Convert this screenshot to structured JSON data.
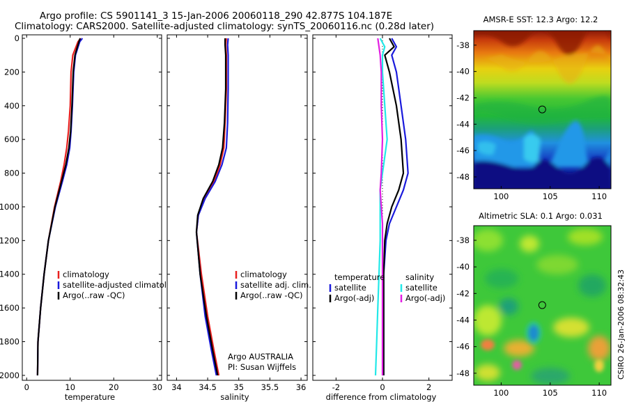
{
  "header": {
    "line1": "Argo profile: CS 5901141_3 15-Jan-2006 20060118_290 42.877S 104.187E",
    "line2": "Climatology: CARS2000. Satellite-adjusted climatology: synTS_20060116.nc (0.28d later)"
  },
  "credit": "CSIRO 26-Jan-2006 08:32:43",
  "colors": {
    "climatology": "#e8201f",
    "satellite": "#1a1adc",
    "argo": "#000000",
    "sat_salinity": "#22e8e8",
    "argo_salinity": "#e21ee2",
    "sat_temperature": "#1a1adc"
  },
  "chart_data": [
    {
      "id": "temperature",
      "type": "line",
      "xlabel": "temperature",
      "xlim": [
        -1,
        31
      ],
      "ylim": [
        0,
        2050
      ],
      "y_reversed": true,
      "xticks": [
        "0",
        "10",
        "20",
        "30"
      ],
      "xtick_values": [
        0,
        10,
        20,
        30
      ],
      "yticks": [
        "0",
        "200",
        "400",
        "600",
        "800",
        "1000",
        "1200",
        "1400",
        "1600",
        "1800",
        "2000"
      ],
      "ytick_values": [
        0,
        200,
        400,
        600,
        800,
        1000,
        1200,
        1400,
        1600,
        1800,
        2000
      ],
      "series": [
        {
          "name": "climatology",
          "color": "#e8201f",
          "x": [
            12.4,
            11.8,
            10.6,
            10.2,
            10.0,
            9.6,
            9.2,
            8.6,
            7.8,
            6.4,
            5.0,
            4.0,
            3.2,
            2.6,
            2.5
          ],
          "y": [
            0,
            20,
            100,
            200,
            400,
            550,
            650,
            750,
            850,
            1000,
            1200,
            1400,
            1600,
            1800,
            2000
          ]
        },
        {
          "name": "satellite-adjusted climatology",
          "color": "#1a1adc",
          "x": [
            12.8,
            12.2,
            11.2,
            10.8,
            10.5,
            10.2,
            9.9,
            9.2,
            8.2,
            6.6,
            5.0,
            4.0,
            3.2,
            2.6,
            2.5
          ],
          "y": [
            0,
            20,
            100,
            200,
            400,
            550,
            650,
            750,
            850,
            1000,
            1200,
            1400,
            1600,
            1800,
            2000
          ]
        },
        {
          "name": "Argo(..raw -QC)",
          "color": "#000000",
          "x": [
            12.3,
            12.0,
            11.1,
            10.7,
            10.4,
            10.1,
            9.7,
            9.0,
            8.0,
            6.5,
            5.0,
            4.0,
            3.2,
            2.6,
            2.5
          ],
          "y": [
            0,
            20,
            100,
            200,
            400,
            550,
            650,
            750,
            850,
            1000,
            1200,
            1400,
            1600,
            1800,
            2000
          ]
        }
      ],
      "legend": [
        "climatology",
        "satellite-adjusted climatology",
        "Argo(..raw -QC)"
      ]
    },
    {
      "id": "salinity",
      "type": "line",
      "xlabel": "salinity",
      "xlim": [
        33.85,
        36.1
      ],
      "ylim": [
        0,
        2050
      ],
      "y_reversed": true,
      "xticks": [
        "34",
        "34.5",
        "35",
        "35.5",
        "36"
      ],
      "xtick_values": [
        34,
        34.5,
        35,
        35.5,
        36
      ],
      "series": [
        {
          "name": "climatology",
          "color": "#e8201f",
          "x": [
            34.8,
            34.79,
            34.8,
            34.8,
            34.78,
            34.76,
            34.7,
            34.6,
            34.45,
            34.35,
            34.32,
            34.4,
            34.5,
            34.6,
            34.68
          ],
          "y": [
            0,
            40,
            100,
            300,
            500,
            650,
            750,
            850,
            950,
            1050,
            1150,
            1400,
            1650,
            1850,
            2000
          ]
        },
        {
          "name": "satellite adj. clim.",
          "color": "#1a1adc",
          "x": [
            34.83,
            34.82,
            34.83,
            34.83,
            34.82,
            34.8,
            34.73,
            34.62,
            34.46,
            34.35,
            34.32,
            34.38,
            34.46,
            34.56,
            34.64
          ],
          "y": [
            0,
            40,
            100,
            300,
            500,
            650,
            750,
            850,
            950,
            1050,
            1150,
            1400,
            1650,
            1850,
            2000
          ]
        },
        {
          "name": "Argo(..raw -QC)",
          "color": "#000000",
          "x": [
            34.78,
            34.78,
            34.79,
            34.79,
            34.77,
            34.74,
            34.68,
            34.58,
            34.43,
            34.34,
            34.32,
            34.38,
            34.48,
            34.58,
            34.66
          ],
          "y": [
            0,
            40,
            100,
            300,
            500,
            650,
            750,
            850,
            950,
            1050,
            1150,
            1400,
            1650,
            1850,
            2000
          ]
        }
      ],
      "legend": [
        "climatology",
        "satellite adj. clim.",
        "Argo(..raw -QC)"
      ],
      "annotation": [
        "Argo AUSTRALIA",
        "PI: Susan Wijffels"
      ]
    },
    {
      "id": "difference",
      "type": "line",
      "xlabel": "difference from climatology",
      "xlim": [
        -3.0,
        3.0
      ],
      "ylim": [
        0,
        2050
      ],
      "y_reversed": true,
      "xticks": [
        "-2",
        "0",
        "2"
      ],
      "xtick_values": [
        -2,
        0,
        2
      ],
      "series": [
        {
          "name": "temperature satellite",
          "color": "#1a1adc",
          "x": [
            0.4,
            0.6,
            0.4,
            0.6,
            0.8,
            1.0,
            1.1,
            0.9,
            0.6,
            0.3,
            0.15,
            0.05,
            0.05,
            0.05,
            0.05
          ],
          "y": [
            0,
            50,
            100,
            200,
            400,
            600,
            800,
            900,
            1000,
            1100,
            1200,
            1400,
            1600,
            1800,
            2000
          ]
        },
        {
          "name": "temperature Argo(-adj)",
          "color": "#000000",
          "x": [
            0.3,
            0.5,
            0.1,
            0.3,
            0.6,
            0.8,
            0.9,
            0.7,
            0.4,
            0.2,
            0.1,
            0.05,
            0.05,
            0.05,
            0.05
          ],
          "y": [
            0,
            50,
            100,
            200,
            400,
            600,
            800,
            900,
            1000,
            1100,
            1200,
            1400,
            1600,
            1800,
            2000
          ]
        },
        {
          "name": "salinity satellite",
          "color": "#22e8e8",
          "x": [
            -0.1,
            0.1,
            0.0,
            0.0,
            0.1,
            0.2,
            0.0,
            -0.1,
            -0.1,
            -0.1,
            -0.1,
            -0.15,
            -0.2,
            -0.25,
            -0.3
          ],
          "y": [
            0,
            50,
            100,
            200,
            400,
            600,
            800,
            900,
            1000,
            1100,
            1200,
            1400,
            1600,
            1800,
            2000
          ]
        },
        {
          "name": "salinity Argo(-adj)",
          "color": "#e21ee2",
          "x": [
            -0.2,
            -0.15,
            -0.1,
            -0.05,
            -0.05,
            0.0,
            -0.05,
            -0.1,
            -0.05,
            0.0,
            0.0,
            0.0,
            0.0,
            0.0,
            0.0
          ],
          "y": [
            0,
            50,
            100,
            200,
            400,
            600,
            800,
            900,
            1000,
            1100,
            1200,
            1400,
            1600,
            1800,
            2000
          ]
        }
      ],
      "legend_left_title": "temperature",
      "legend_right_title": "salinity",
      "legend_left": [
        "satellite",
        "Argo(-adj)"
      ],
      "legend_right": [
        "satellite",
        "Argo(-adj)"
      ]
    },
    {
      "id": "sst_map",
      "type": "heatmap",
      "title": "AMSR-E SST: 12.3 Argo: 12.2",
      "xticks": [
        "100",
        "105",
        "110"
      ],
      "xtick_values": [
        100,
        105,
        110
      ],
      "yticks": [
        "-38",
        "-40",
        "-42",
        "-44",
        "-46",
        "-48"
      ],
      "ytick_values": [
        -38,
        -40,
        -42,
        -44,
        -46,
        -48
      ],
      "xlim": [
        97.2,
        111.2
      ],
      "ylim": [
        -48.9,
        -36.9
      ],
      "marker": {
        "lon": 104.187,
        "lat": -42.877
      }
    },
    {
      "id": "sla_map",
      "type": "heatmap",
      "title": "Altimetric SLA: 0.1 Argo: 0.031",
      "xticks": [
        "100",
        "105",
        "110"
      ],
      "xtick_values": [
        100,
        105,
        110
      ],
      "yticks": [
        "-38",
        "-40",
        "-42",
        "-44",
        "-46",
        "-48"
      ],
      "ytick_values": [
        -38,
        -40,
        -42,
        -44,
        -46,
        -48
      ],
      "xlim": [
        97.2,
        111.2
      ],
      "ylim": [
        -48.9,
        -36.9
      ],
      "marker": {
        "lon": 104.187,
        "lat": -42.877
      }
    }
  ]
}
